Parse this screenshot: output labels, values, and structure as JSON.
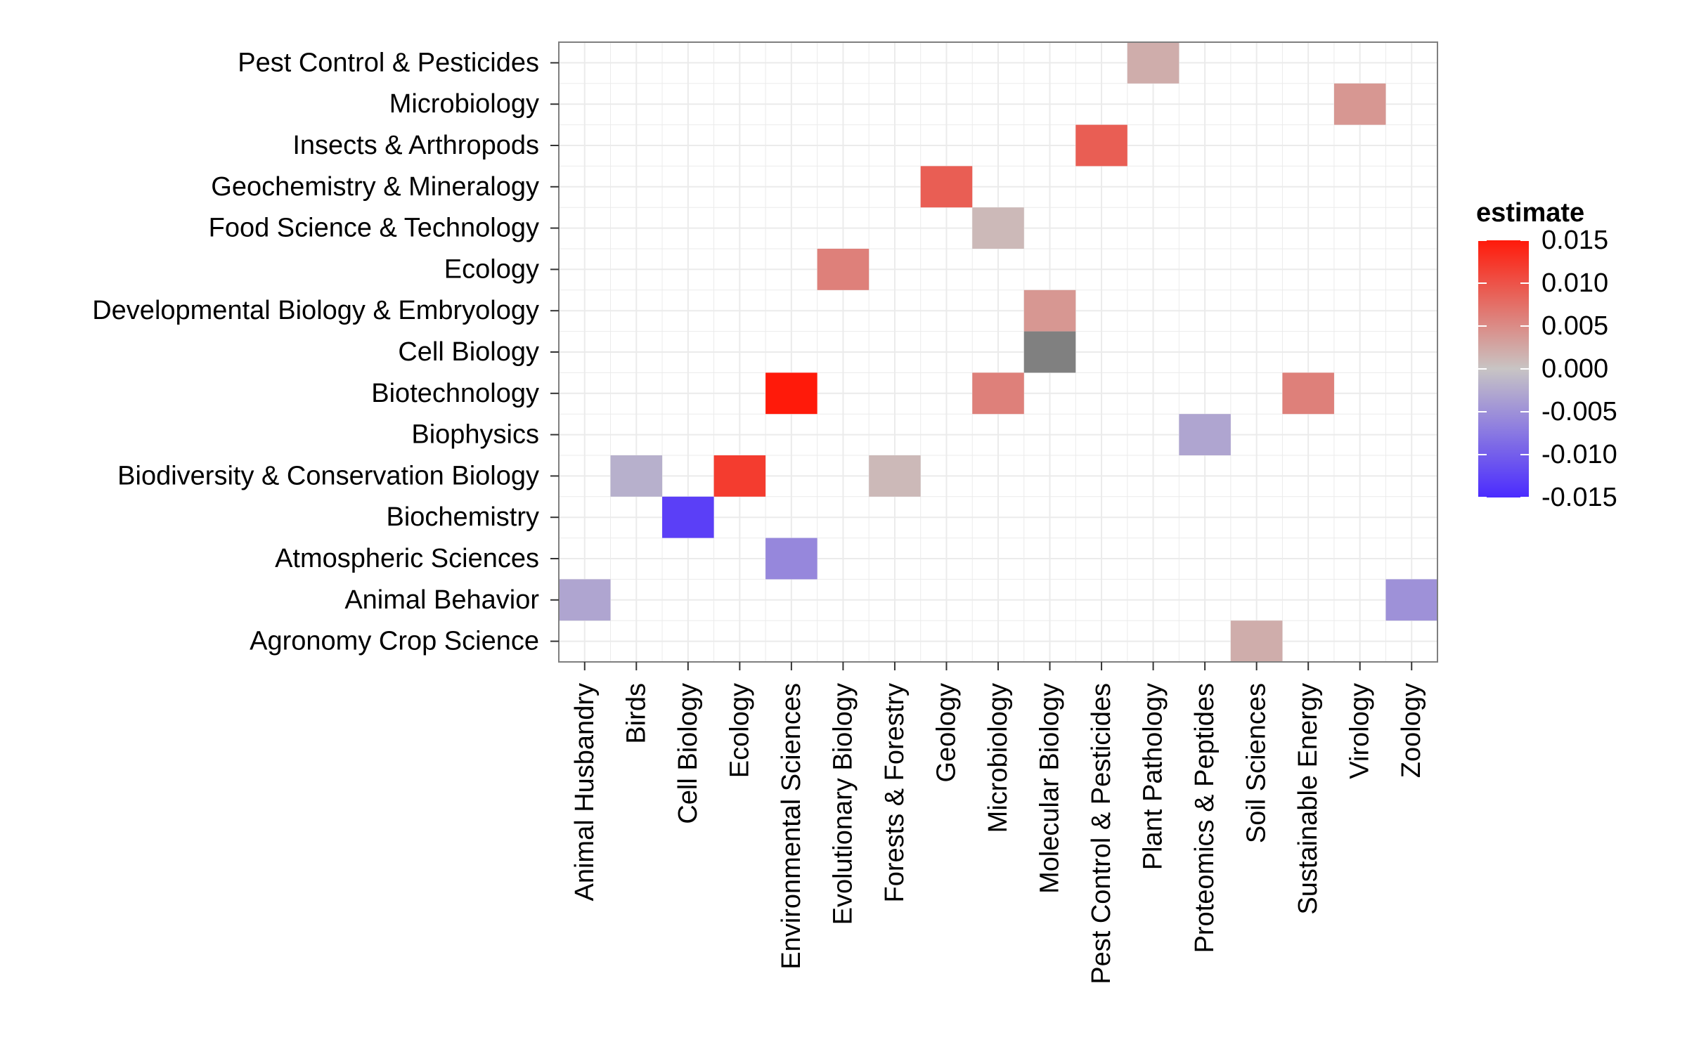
{
  "chart_data": {
    "type": "heatmap",
    "title": "",
    "xlabel": "",
    "ylabel": "",
    "x_categories": [
      "Animal Husbandry",
      "Birds",
      "Cell Biology",
      "Ecology",
      "Environmental Sciences",
      "Evolutionary Biology",
      "Forests & Forestry",
      "Geology",
      "Microbiology",
      "Molecular Biology",
      "Pest Control & Pesticides",
      "Plant Pathology",
      "Proteomics & Peptides",
      "Soil Sciences",
      "Sustainable Energy",
      "Virology",
      "Zoology"
    ],
    "y_categories": [
      "Agronomy Crop Science",
      "Animal Behavior",
      "Atmospheric Sciences",
      "Biochemistry",
      "Biodiversity & Conservation Biology",
      "Biophysics",
      "Biotechnology",
      "Cell Biology",
      "Developmental Biology & Embryology",
      "Ecology",
      "Food Science & Technology",
      "Geochemistry & Mineralogy",
      "Insects & Arthropods",
      "Microbiology",
      "Pest Control & Pesticides"
    ],
    "cells": [
      {
        "x": "Plant Pathology",
        "y": "Pest Control & Pesticides",
        "value": 0.002
      },
      {
        "x": "Virology",
        "y": "Microbiology",
        "value": 0.004
      },
      {
        "x": "Pest Control & Pesticides",
        "y": "Insects & Arthropods",
        "value": 0.009
      },
      {
        "x": "Geology",
        "y": "Geochemistry & Mineralogy",
        "value": 0.009
      },
      {
        "x": "Microbiology",
        "y": "Food Science & Technology",
        "value": 0.001
      },
      {
        "x": "Evolutionary Biology",
        "y": "Ecology",
        "value": 0.006
      },
      {
        "x": "Molecular Biology",
        "y": "Developmental Biology & Embryology",
        "value": 0.004
      },
      {
        "x": "Molecular Biology",
        "y": "Cell Biology",
        "value": null
      },
      {
        "x": "Environmental Sciences",
        "y": "Biotechnology",
        "value": 0.015
      },
      {
        "x": "Microbiology",
        "y": "Biotechnology",
        "value": 0.006
      },
      {
        "x": "Sustainable Energy",
        "y": "Biotechnology",
        "value": 0.006
      },
      {
        "x": "Proteomics & Peptides",
        "y": "Biophysics",
        "value": -0.003
      },
      {
        "x": "Birds",
        "y": "Biodiversity & Conservation Biology",
        "value": -0.002
      },
      {
        "x": "Ecology",
        "y": "Biodiversity & Conservation Biology",
        "value": 0.012
      },
      {
        "x": "Forests & Forestry",
        "y": "Biodiversity & Conservation Biology",
        "value": 0.001
      },
      {
        "x": "Cell Biology",
        "y": "Biochemistry",
        "value": -0.013
      },
      {
        "x": "Environmental Sciences",
        "y": "Atmospheric Sciences",
        "value": -0.006
      },
      {
        "x": "Animal Husbandry",
        "y": "Animal Behavior",
        "value": -0.003
      },
      {
        "x": "Zoology",
        "y": "Animal Behavior",
        "value": -0.005
      },
      {
        "x": "Soil Sciences",
        "y": "Agronomy Crop Science",
        "value": 0.002
      }
    ],
    "legend": {
      "title": "estimate",
      "position": "right",
      "range": [
        -0.015,
        0.015
      ],
      "breaks": [
        "0.015",
        "0.010",
        "0.005",
        "0.000",
        "-0.005",
        "-0.010",
        "-0.015"
      ],
      "break_values": [
        0.015,
        0.01,
        0.005,
        0.0,
        -0.005,
        -0.01,
        -0.015
      ]
    },
    "colors": {
      "low": "#4a2bff",
      "mid": "#c8c4c4",
      "high": "#ff1a0a",
      "na": "#808080",
      "grid": "#ebebeb",
      "border": "#7f7f7f"
    },
    "grid": true
  }
}
